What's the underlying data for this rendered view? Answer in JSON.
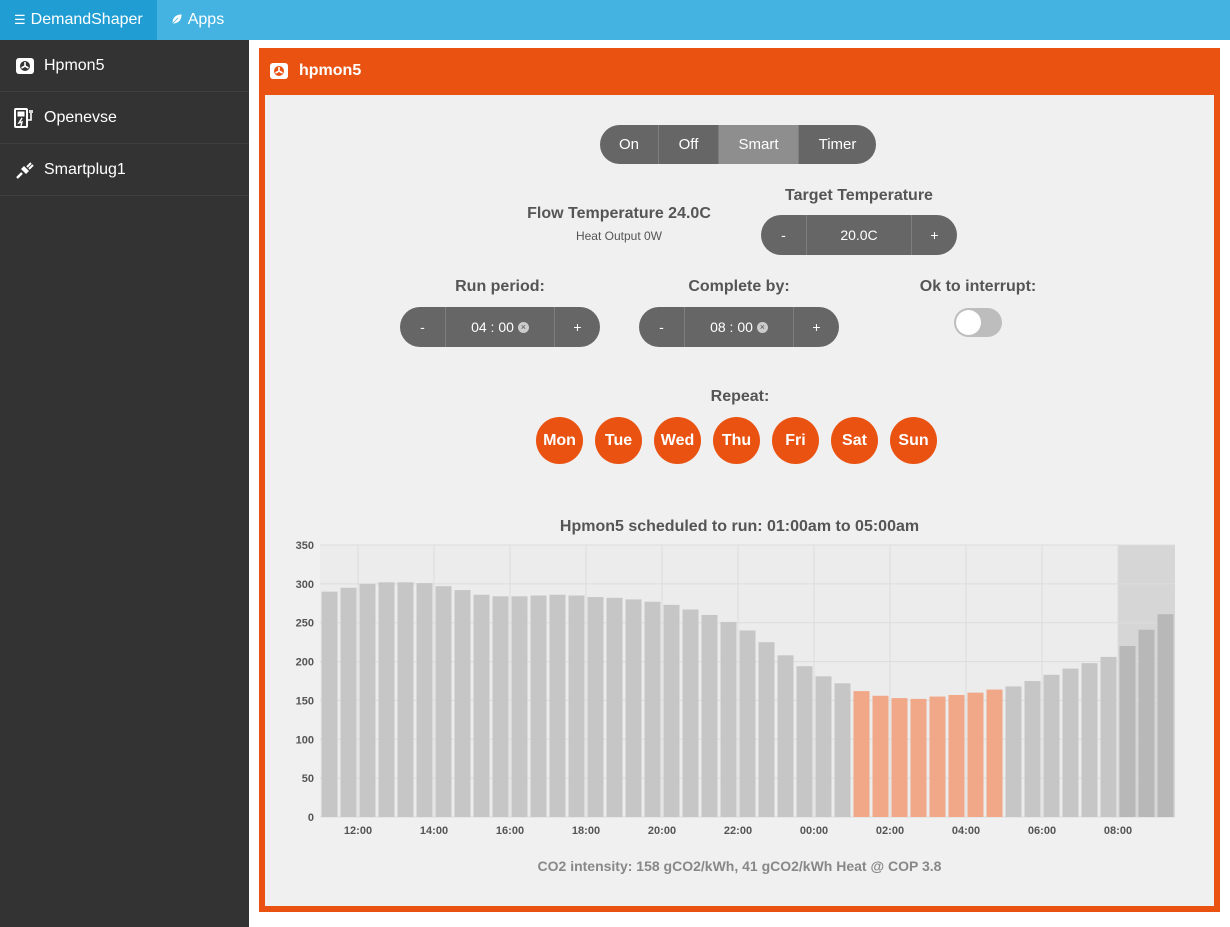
{
  "navbar": {
    "brand": "DemandShaper",
    "apps": "Apps"
  },
  "sidebar": {
    "items": [
      {
        "label": "Hpmon5",
        "icon": "heatpump-icon"
      },
      {
        "label": "Openevse",
        "icon": "ev-charger-icon"
      },
      {
        "label": "Smartplug1",
        "icon": "plug-icon"
      }
    ]
  },
  "panel": {
    "title": "hpmon5",
    "modes": [
      "On",
      "Off",
      "Smart",
      "Timer"
    ],
    "selected_mode": "Smart",
    "flow_temperature": "Flow Temperature 24.0C",
    "heat_output": "Heat Output 0W",
    "target_temperature_label": "Target Temperature",
    "target_temperature": "20.0C",
    "run_period_label": "Run period:",
    "run_period": "04 : 00",
    "complete_by_label": "Complete by:",
    "complete_by": "08 : 00",
    "interrupt_label": "Ok to interrupt:",
    "interrupt_on": false,
    "minus": "-",
    "plus": "+",
    "clear": "×",
    "repeat_label": "Repeat:",
    "days": [
      "Mon",
      "Tue",
      "Wed",
      "Thu",
      "Fri",
      "Sat",
      "Sun"
    ],
    "co2_text": "CO2 intensity: 158 gCO2/kWh, 41 gCO2/kWh Heat @ COP 3.8"
  },
  "colors": {
    "accent": "#ea5211",
    "bar": "#c6c6c6",
    "bar_scheduled": "#f0a888",
    "bar_future": "#b8b8b8"
  },
  "chart_data": {
    "type": "bar",
    "title": "Hpmon5 scheduled to run: 01:00am to 05:00am",
    "ylim": [
      0,
      350
    ],
    "yticks": [
      0,
      50,
      100,
      150,
      200,
      250,
      300,
      350
    ],
    "xticks": [
      "12:00",
      "14:00",
      "16:00",
      "18:00",
      "20:00",
      "22:00",
      "00:00",
      "02:00",
      "04:00",
      "06:00",
      "08:00"
    ],
    "start_time": "11:00",
    "interval_minutes": 30,
    "values": [
      290,
      295,
      300,
      302,
      302,
      301,
      297,
      292,
      286,
      284,
      284,
      285,
      286,
      285,
      283,
      282,
      280,
      277,
      273,
      267,
      260,
      251,
      240,
      225,
      208,
      194,
      181,
      172,
      162,
      156,
      153,
      152,
      155,
      157,
      160,
      164,
      168,
      175,
      183,
      191,
      198,
      206,
      220,
      241,
      261
    ],
    "scheduled": "01:00am to 05:00am",
    "scheduled_range": [
      28,
      35
    ],
    "shaded_from": 42
  }
}
